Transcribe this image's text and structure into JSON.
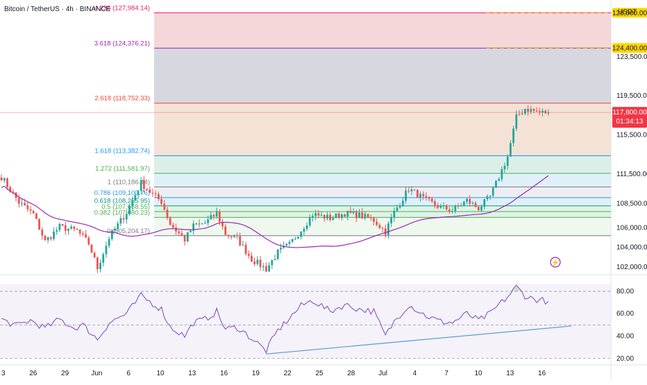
{
  "header": {
    "title": "Bitcoin / TetherUS · 4h · BINANCE",
    "unit": "USDT"
  },
  "colors": {
    "candle_up": "#26a69a",
    "candle_down": "#ef5350",
    "ma": "#9c27b0",
    "rsi": "#7e57c2",
    "rsi_trend": "#5b9bd5",
    "price_tag": "#f23645",
    "target_tag": "#ffd600",
    "fib_4236": "#e91e63",
    "fib_3618": "#9c27b0",
    "fib_2618": "#f44336",
    "fib_1618": "#2196f3",
    "fib_1272": "#4caf50",
    "fib_1": "#787b86",
    "fib_0786": "#2196f3",
    "fib_0618": "#089981",
    "fib_05": "#4caf50",
    "fib_0382": "#4caf50",
    "fib_0": "#787b86"
  },
  "chart_data": [
    {
      "type": "candlestick",
      "panel": "price",
      "x_ticks": [
        "3",
        "26",
        "29",
        "Jun",
        "6",
        "10",
        "13",
        "16",
        "19",
        "22",
        "25",
        "28",
        "Jul",
        "4",
        "7",
        "10",
        "13",
        "16"
      ],
      "y_ticks": [
        102000,
        104000,
        106000,
        108500,
        111500,
        115500,
        119500,
        123500
      ],
      "y_tick_labels": [
        "102,000.00",
        "104,000.00",
        "106,000.00",
        "108,500.00",
        "111,500.00",
        "115,500.00",
        "119,500.00",
        "123,500.00"
      ],
      "ylim": [
        101500,
        129300
      ],
      "fib_levels": [
        {
          "ratio": "4.236",
          "price": "127,984.14",
          "value": 127984.14,
          "color": "fib_4236"
        },
        {
          "ratio": "3.618",
          "price": "124,376.21",
          "value": 124376.21,
          "color": "fib_3618"
        },
        {
          "ratio": "2.618",
          "price": "118,752.33",
          "value": 118752.33,
          "color": "fib_2618"
        },
        {
          "ratio": "1.618",
          "price": "113,382.74",
          "value": 113382.74,
          "color": "fib_1618"
        },
        {
          "ratio": "1.272",
          "price": "111,581.97",
          "value": 111581.97,
          "color": "fib_1272"
        },
        {
          "ratio": "1",
          "price": "110,186.44",
          "value": 110186.44,
          "color": "fib_1"
        },
        {
          "ratio": "0.786",
          "price": "109,100.76",
          "value": 109100.76,
          "color": "fib_0786"
        },
        {
          "ratio": "0.618",
          "price": "108,255.95",
          "value": 108255.95,
          "color": "fib_0618"
        },
        {
          "ratio": "0.5",
          "price": "107,668.55",
          "value": 107668.55,
          "color": "fib_05"
        },
        {
          "ratio": "0.382",
          "price": "107,080.23",
          "value": 107080.23,
          "color": "fib_0382"
        },
        {
          "ratio": "0",
          "price": "105,204.17",
          "value": 105204.17,
          "color": "fib_0"
        }
      ],
      "targets": [
        {
          "value": 128000,
          "label": "128,000.00"
        },
        {
          "value": 124400,
          "label": "124,400.00"
        }
      ],
      "last_price": {
        "value": 117800,
        "label": "117,800.00",
        "countdown": "01:34:13"
      },
      "anchors": [
        {
          "x": 0,
          "close": 111200
        },
        {
          "x": 6,
          "close": 108600
        },
        {
          "x": 11,
          "close": 107400
        },
        {
          "x": 15,
          "close": 104600
        },
        {
          "x": 20,
          "close": 106100
        },
        {
          "x": 26,
          "close": 105700
        },
        {
          "x": 30,
          "close": 104400
        },
        {
          "x": 33,
          "close": 101900
        },
        {
          "x": 37,
          "close": 105000
        },
        {
          "x": 43,
          "close": 107600
        },
        {
          "x": 48,
          "close": 110600
        },
        {
          "x": 52,
          "close": 109400
        },
        {
          "x": 55,
          "close": 108700
        },
        {
          "x": 58,
          "close": 106400
        },
        {
          "x": 63,
          "close": 104800
        },
        {
          "x": 66,
          "close": 106200
        },
        {
          "x": 70,
          "close": 106500
        },
        {
          "x": 74,
          "close": 107500
        },
        {
          "x": 77,
          "close": 105400
        },
        {
          "x": 81,
          "close": 104900
        },
        {
          "x": 86,
          "close": 102800
        },
        {
          "x": 91,
          "close": 101800
        },
        {
          "x": 95,
          "close": 103500
        },
        {
          "x": 99,
          "close": 104300
        },
        {
          "x": 103,
          "close": 105800
        },
        {
          "x": 107,
          "close": 107400
        },
        {
          "x": 113,
          "close": 107000
        },
        {
          "x": 118,
          "close": 107500
        },
        {
          "x": 123,
          "close": 107300
        },
        {
          "x": 128,
          "close": 106800
        },
        {
          "x": 132,
          "close": 105600
        },
        {
          "x": 135,
          "close": 107600
        },
        {
          "x": 140,
          "close": 110000
        },
        {
          "x": 146,
          "close": 108800
        },
        {
          "x": 151,
          "close": 108100
        },
        {
          "x": 155,
          "close": 107800
        },
        {
          "x": 160,
          "close": 108800
        },
        {
          "x": 164,
          "close": 108000
        },
        {
          "x": 168,
          "close": 109200
        },
        {
          "x": 171,
          "close": 111200
        },
        {
          "x": 174,
          "close": 113300
        },
        {
          "x": 177,
          "close": 117300
        },
        {
          "x": 180,
          "close": 118200
        },
        {
          "x": 185,
          "close": 117800
        },
        {
          "x": 188,
          "close": 117800
        }
      ]
    },
    {
      "type": "line",
      "panel": "rsi",
      "name": "",
      "y_ticks": [
        20,
        40,
        60,
        80
      ],
      "y_tick_labels": [
        "20.00",
        "40.00",
        "60.00",
        "80.00"
      ],
      "ylim": [
        18,
        88
      ],
      "bands": {
        "upper": 80,
        "mid": 50,
        "lower": 20
      },
      "anchors": [
        {
          "x": 0,
          "y": 55
        },
        {
          "x": 5,
          "y": 49
        },
        {
          "x": 10,
          "y": 54
        },
        {
          "x": 15,
          "y": 47
        },
        {
          "x": 20,
          "y": 55
        },
        {
          "x": 25,
          "y": 47
        },
        {
          "x": 28,
          "y": 50
        },
        {
          "x": 33,
          "y": 37
        },
        {
          "x": 37,
          "y": 52
        },
        {
          "x": 43,
          "y": 60
        },
        {
          "x": 48,
          "y": 76
        },
        {
          "x": 52,
          "y": 69
        },
        {
          "x": 55,
          "y": 64
        },
        {
          "x": 58,
          "y": 48
        },
        {
          "x": 63,
          "y": 40
        },
        {
          "x": 66,
          "y": 52
        },
        {
          "x": 70,
          "y": 55
        },
        {
          "x": 74,
          "y": 62
        },
        {
          "x": 77,
          "y": 46
        },
        {
          "x": 81,
          "y": 48
        },
        {
          "x": 86,
          "y": 38
        },
        {
          "x": 91,
          "y": 27
        },
        {
          "x": 95,
          "y": 45
        },
        {
          "x": 99,
          "y": 56
        },
        {
          "x": 103,
          "y": 67
        },
        {
          "x": 107,
          "y": 72
        },
        {
          "x": 113,
          "y": 62
        },
        {
          "x": 118,
          "y": 68
        },
        {
          "x": 123,
          "y": 64
        },
        {
          "x": 128,
          "y": 62
        },
        {
          "x": 132,
          "y": 40
        },
        {
          "x": 135,
          "y": 53
        },
        {
          "x": 140,
          "y": 68
        },
        {
          "x": 146,
          "y": 58
        },
        {
          "x": 151,
          "y": 53
        },
        {
          "x": 155,
          "y": 52
        },
        {
          "x": 160,
          "y": 60
        },
        {
          "x": 164,
          "y": 54
        },
        {
          "x": 168,
          "y": 60
        },
        {
          "x": 171,
          "y": 68
        },
        {
          "x": 174,
          "y": 75
        },
        {
          "x": 177,
          "y": 84
        },
        {
          "x": 180,
          "y": 76
        },
        {
          "x": 183,
          "y": 73
        },
        {
          "x": 186,
          "y": 72
        },
        {
          "x": 188,
          "y": 71
        }
      ],
      "trendline": [
        {
          "x": 91,
          "y": 24
        },
        {
          "x": 196,
          "y": 49
        }
      ]
    }
  ]
}
